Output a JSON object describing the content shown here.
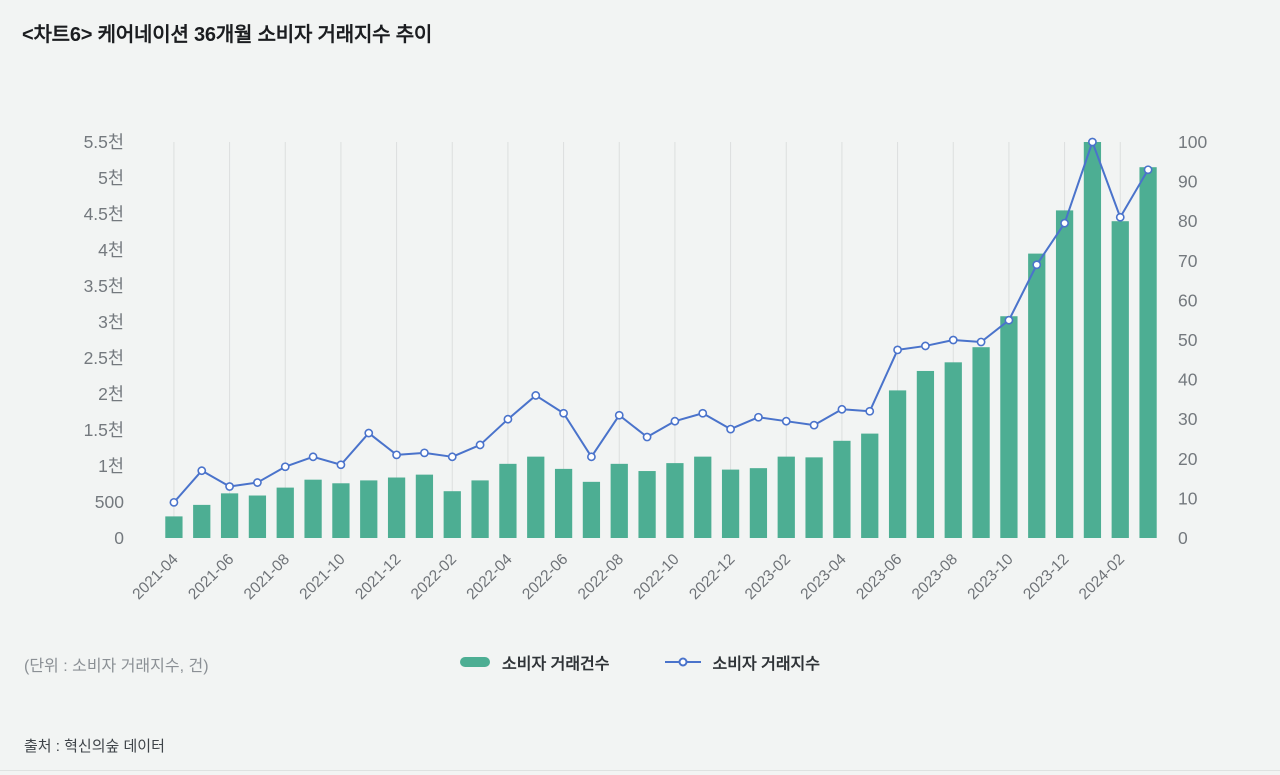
{
  "page": {
    "title": "<차트6>  케어네이션 36개월 소비자 거래지수 추이",
    "unit_note": "(단위 : 소비자 거래지수, 건)",
    "source": "출처 : 혁신의숲 데이터",
    "legend": {
      "bar_label": "소비자 거래건수",
      "line_label": "소비자 거래지수"
    },
    "colors": {
      "background": "#f2f4f3",
      "bar": "#4dae93",
      "line": "#4a73cb",
      "gridline": "#dcdfde",
      "axis_text": "#74797e"
    }
  },
  "chart_data": {
    "type": "bar",
    "subtype": "combo bar+line, dual axis",
    "title": "<차트6> 케어네이션 36개월 소비자 거래지수 추이",
    "x": [
      "2021-04",
      "2021-05",
      "2021-06",
      "2021-07",
      "2021-08",
      "2021-09",
      "2021-10",
      "2021-11",
      "2021-12",
      "2022-01",
      "2022-02",
      "2022-03",
      "2022-04",
      "2022-05",
      "2022-06",
      "2022-07",
      "2022-08",
      "2022-09",
      "2022-10",
      "2022-11",
      "2022-12",
      "2023-01",
      "2023-02",
      "2023-03",
      "2023-04",
      "2023-05",
      "2023-06",
      "2023-07",
      "2023-08",
      "2023-09",
      "2023-10",
      "2023-11",
      "2023-12",
      "2024-01",
      "2024-02",
      "2024-03"
    ],
    "x_tick_labels": [
      "2021-04",
      "2021-06",
      "2021-08",
      "2021-10",
      "2021-12",
      "2022-02",
      "2022-04",
      "2022-06",
      "2022-08",
      "2022-10",
      "2022-12",
      "2023-02",
      "2023-04",
      "2023-06",
      "2023-08",
      "2023-10",
      "2023-12",
      "2024-02"
    ],
    "label_every": 2,
    "series": [
      {
        "name": "소비자 거래건수",
        "type": "bar",
        "axis": "left",
        "color": "#4dae93",
        "values": [
          300,
          460,
          620,
          590,
          700,
          810,
          760,
          800,
          840,
          880,
          650,
          800,
          1030,
          1130,
          960,
          780,
          1030,
          930,
          1040,
          1130,
          950,
          970,
          1130,
          1120,
          1350,
          1450,
          2050,
          2320,
          2440,
          2650,
          3080,
          3950,
          4550,
          5500,
          4400,
          5150
        ]
      },
      {
        "name": "소비자 거래지수",
        "type": "line",
        "axis": "right",
        "color": "#4a73cb",
        "marker": "open-circle",
        "values": [
          9,
          17,
          13,
          14,
          18,
          20.5,
          18.5,
          26.5,
          21,
          21.5,
          20.5,
          23.5,
          30,
          36,
          31.5,
          20.5,
          31,
          25.5,
          29.5,
          31.5,
          27.5,
          30.5,
          29.5,
          28.5,
          32.5,
          32,
          47.5,
          48.5,
          50,
          49.5,
          55,
          69,
          79.5,
          100,
          81,
          93
        ]
      }
    ],
    "left_axis": {
      "min": 0,
      "max": 5500,
      "ticks": [
        "0",
        "500",
        "1천",
        "1.5천",
        "2천",
        "2.5천",
        "3천",
        "3.5천",
        "4천",
        "4.5천",
        "5천",
        "5.5천"
      ]
    },
    "right_axis": {
      "min": 0,
      "max": 100,
      "ticks": [
        "0",
        "10",
        "20",
        "30",
        "40",
        "50",
        "60",
        "70",
        "80",
        "90",
        "100"
      ]
    },
    "grid": "vertical gridlines at every labeled month",
    "legend_position": "bottom-center"
  }
}
